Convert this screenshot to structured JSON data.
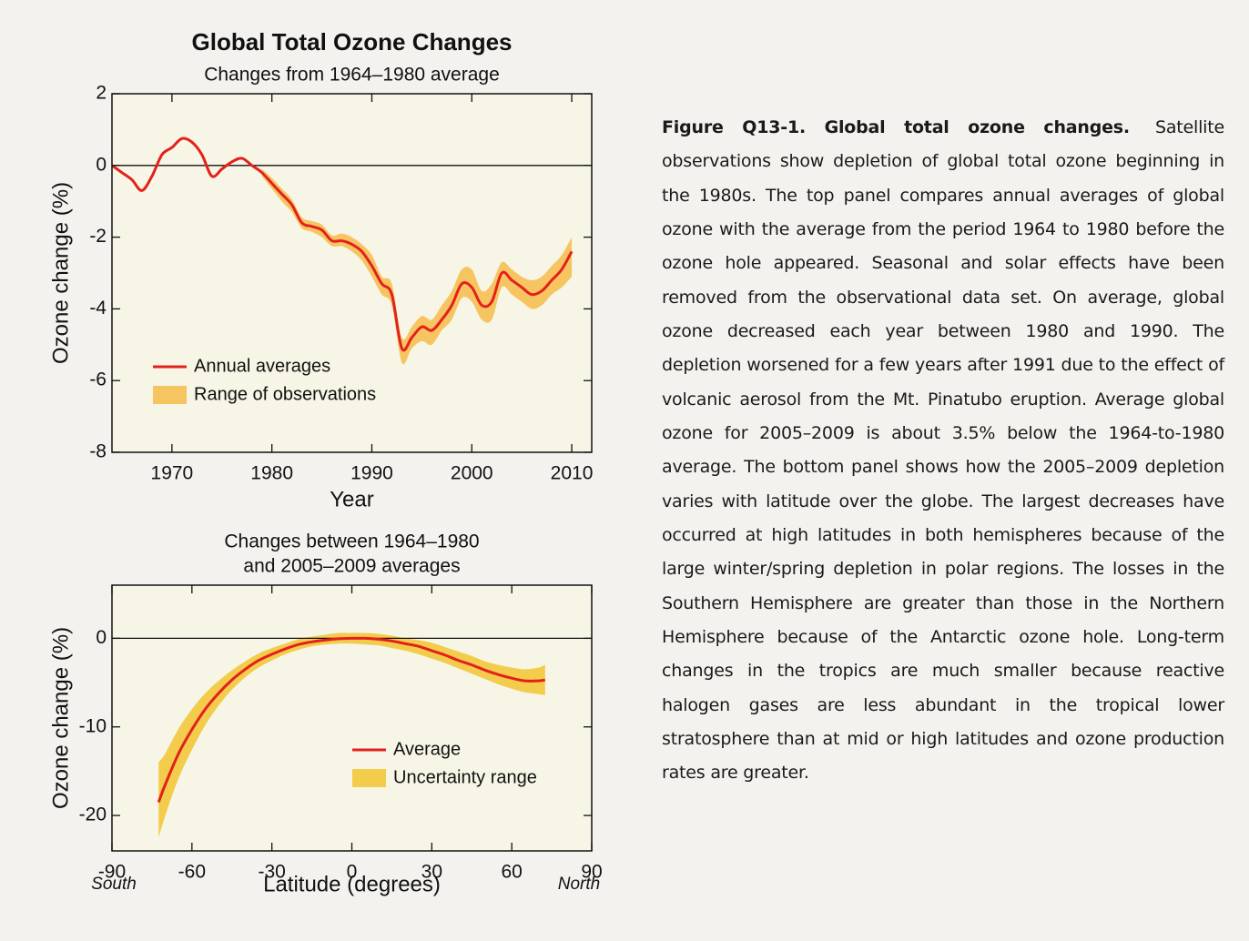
{
  "chart_data": [
    {
      "type": "line",
      "title": "Global Total Ozone Changes",
      "subtitle": "Changes from 1964–1980 average",
      "xlabel": "Year",
      "ylabel": "Ozone change (%)",
      "x": [
        1964,
        1965,
        1966,
        1967,
        1968,
        1969,
        1970,
        1971,
        1972,
        1973,
        1974,
        1975,
        1976,
        1977,
        1978,
        1979,
        1980,
        1981,
        1982,
        1983,
        1984,
        1985,
        1986,
        1987,
        1988,
        1989,
        1990,
        1991,
        1992,
        1993,
        1994,
        1995,
        1996,
        1997,
        1998,
        1999,
        2000,
        2001,
        2002,
        2003,
        2004,
        2005,
        2006,
        2007,
        2008,
        2009,
        2010
      ],
      "series": [
        {
          "name": "Annual averages",
          "color": "#e3211c",
          "values": [
            0.0,
            -0.2,
            -0.4,
            -0.7,
            -0.3,
            0.3,
            0.5,
            0.75,
            0.65,
            0.3,
            -0.3,
            -0.1,
            0.1,
            0.2,
            0.0,
            -0.2,
            -0.5,
            -0.8,
            -1.1,
            -1.6,
            -1.7,
            -1.8,
            -2.1,
            -2.1,
            -2.2,
            -2.4,
            -2.8,
            -3.3,
            -3.6,
            -5.1,
            -4.8,
            -4.5,
            -4.6,
            -4.3,
            -3.9,
            -3.3,
            -3.4,
            -3.9,
            -3.8,
            -3.0,
            -3.2,
            -3.4,
            -3.6,
            -3.5,
            -3.2,
            -2.9,
            -2.4
          ]
        }
      ],
      "bands": [
        {
          "name": "Range of observations",
          "color": "#f6c561",
          "low": [
            null,
            null,
            null,
            null,
            null,
            null,
            null,
            null,
            null,
            null,
            null,
            null,
            null,
            null,
            null,
            -0.3,
            -0.65,
            -1.0,
            -1.3,
            -1.75,
            -1.85,
            -2.0,
            -2.25,
            -2.25,
            -2.4,
            -2.65,
            -3.1,
            -3.6,
            -3.9,
            -5.5,
            -5.1,
            -4.9,
            -5.0,
            -4.6,
            -4.3,
            -3.7,
            -3.8,
            -4.3,
            -4.3,
            -3.4,
            -3.6,
            -3.8,
            -4.0,
            -3.9,
            -3.6,
            -3.4,
            -3.1
          ],
          "high": [
            null,
            null,
            null,
            null,
            null,
            null,
            null,
            null,
            null,
            null,
            null,
            null,
            null,
            null,
            null,
            -0.1,
            -0.35,
            -0.65,
            -0.95,
            -1.45,
            -1.55,
            -1.65,
            -1.95,
            -1.9,
            -2.0,
            -2.2,
            -2.5,
            -3.1,
            -3.3,
            -4.8,
            -4.5,
            -4.2,
            -4.3,
            -3.9,
            -3.5,
            -2.9,
            -2.9,
            -3.5,
            -3.3,
            -2.7,
            -2.9,
            -3.1,
            -3.2,
            -3.1,
            -2.8,
            -2.5,
            -2.0
          ]
        }
      ],
      "xlim": [
        1964,
        2012
      ],
      "xticks": [
        1970,
        1980,
        1990,
        2000,
        2010
      ],
      "ylim": [
        -8,
        2
      ],
      "yticks": [
        -8,
        -6,
        -4,
        -2,
        0,
        2
      ],
      "zero_line": true,
      "legend": "lower left"
    },
    {
      "type": "line",
      "title_lines": [
        "Changes between 1964–1980",
        "and 2005–2009 averages"
      ],
      "xlabel": "Latitude (degrees)",
      "ylabel": "Ozone change (%)",
      "annotations": [
        "South",
        "North"
      ],
      "x": [
        -72.5,
        -70,
        -65,
        -60,
        -55,
        -50,
        -45,
        -40,
        -35,
        -30,
        -25,
        -20,
        -15,
        -10,
        -5,
        0,
        5,
        10,
        15,
        20,
        25,
        30,
        35,
        40,
        45,
        50,
        55,
        60,
        65,
        70,
        72.5
      ],
      "series": [
        {
          "name": "Average",
          "color": "#e3211c",
          "values": [
            -18.5,
            -16.5,
            -13.0,
            -10.3,
            -8.0,
            -6.2,
            -4.7,
            -3.5,
            -2.5,
            -1.8,
            -1.2,
            -0.7,
            -0.4,
            -0.2,
            -0.05,
            0,
            0,
            -0.1,
            -0.3,
            -0.6,
            -0.9,
            -1.4,
            -1.9,
            -2.5,
            -3.0,
            -3.6,
            -4.1,
            -4.5,
            -4.8,
            -4.8,
            -4.7
          ]
        }
      ],
      "bands": [
        {
          "name": "Uncertainty range",
          "color": "#f3cc4c",
          "low": [
            -22.5,
            -20,
            -15.8,
            -12.6,
            -9.8,
            -7.6,
            -5.8,
            -4.4,
            -3.3,
            -2.5,
            -1.8,
            -1.3,
            -0.9,
            -0.7,
            -0.6,
            -0.6,
            -0.7,
            -0.8,
            -1.1,
            -1.4,
            -1.8,
            -2.3,
            -2.8,
            -3.4,
            -4.0,
            -4.6,
            -5.2,
            -5.7,
            -6.1,
            -6.3,
            -6.4
          ],
          "high": [
            -14,
            -13,
            -10.2,
            -8.0,
            -6.2,
            -4.8,
            -3.6,
            -2.6,
            -1.7,
            -1.1,
            -0.6,
            -0.1,
            0.2,
            0.4,
            0.6,
            0.6,
            0.6,
            0.5,
            0.3,
            0,
            -0.2,
            -0.5,
            -1.0,
            -1.5,
            -2.0,
            -2.6,
            -3.0,
            -3.3,
            -3.5,
            -3.3,
            -3.0
          ]
        }
      ],
      "xlim": [
        -90,
        90
      ],
      "xticks": [
        -90,
        -60,
        -30,
        0,
        30,
        60,
        90
      ],
      "ylim": [
        -24,
        6
      ],
      "yticks": [
        -20,
        -10,
        0
      ],
      "zero_line": true,
      "legend": "lower right"
    }
  ],
  "caption": {
    "heading": "Figure Q13-1. Global total ozone changes.",
    "body": "Satellite observations show depletion of global total ozone beginning in the 1980s. The top panel compares annual averages of global ozone with the average from the period 1964 to 1980 before the ozone hole appeared. Seasonal and solar effects have been removed from the observational data set. On average, global ozone decreased each year between 1980 and 1990. The depletion worsened for a few years after 1991 due to the effect of volcanic aerosol from the Mt. Pinatubo eruption. Average global ozone for 2005–2009 is about 3.5% below the 1964-to-1980 average. The bottom panel shows how the 2005–2009 depletion varies with latitude over the globe. The largest decreases have occurred at high latitudes in both hemispheres because of the large winter/spring depletion in polar regions. The losses in the Southern Hemisphere are greater than those in the Northern Hemisphere because of the Antarctic ozone hole. Long-term changes in the tropics are much smaller because reactive halogen gases are less abundant in the tropical lower stratosphere than at mid or high latitudes and ozone production rates are greater."
  }
}
